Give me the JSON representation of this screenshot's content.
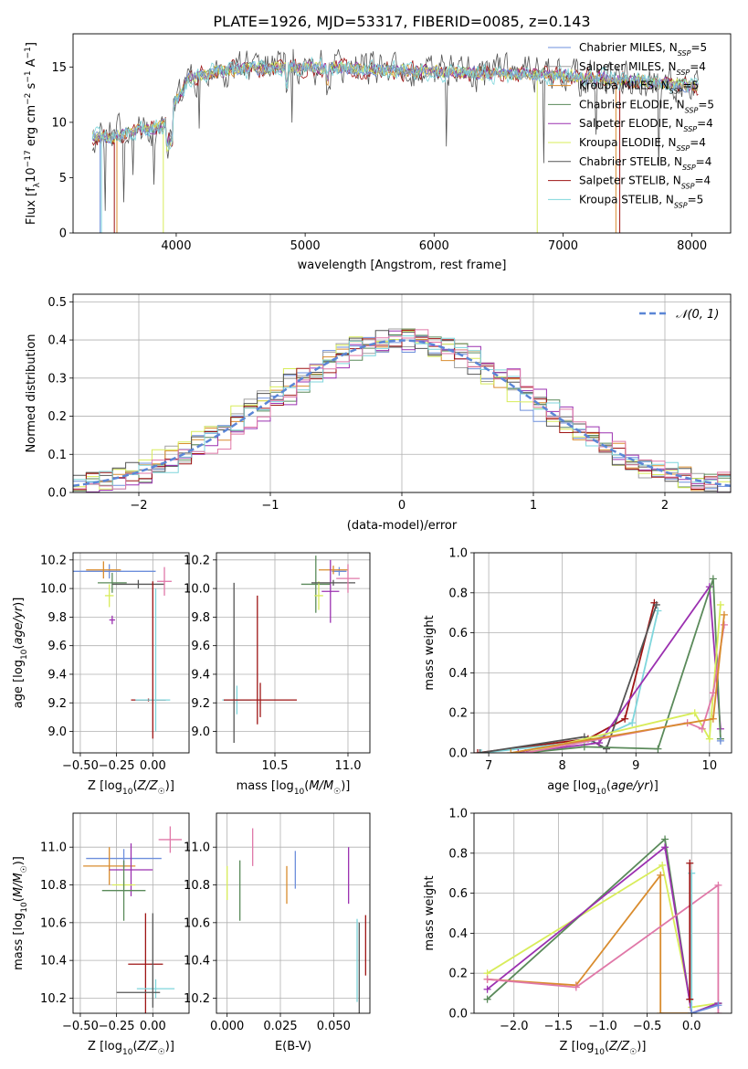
{
  "title": "PLATE=1926, MJD=53317, FIBERID=0085, z=0.143",
  "colors": {
    "Chabrier MILES": "#6d8fdc",
    "Salpeter MILES": "#a0a0a0",
    "Kroupa MILES": "#d98c2e",
    "Chabrier ELODIE": "#5a8a5a",
    "Salpeter ELODIE": "#9b30b0",
    "Kroupa ELODIE": "#d8ec5a",
    "Chabrier STELIB": "#555555",
    "Salpeter STELIB": "#9e1414",
    "Kroupa STELIB": "#7fd6dc",
    "pink": "#e078a8",
    "normal": "#5b86d6"
  },
  "chart_data": [
    {
      "type": "line",
      "xlabel": "wavelength [Angstrom, rest frame]",
      "ylabel": "Flux [f_λ10^-17 erg cm^-2 s^-1 A^-1]",
      "xlim": [
        3200,
        8300
      ],
      "ylim": [
        0,
        18
      ],
      "xticks": [
        "4000",
        "5000",
        "6000",
        "7000",
        "8000"
      ],
      "yticks": [
        "0",
        "5",
        "10",
        "15"
      ],
      "continuum": {
        "x": [
          3350,
          3500,
          3700,
          3900,
          4000,
          4100,
          4300,
          4500,
          5000,
          5500,
          6000,
          6500,
          7000,
          7500,
          8050
        ],
        "y": [
          8.8,
          8.6,
          9.3,
          9.6,
          12.0,
          14.0,
          14.6,
          14.8,
          15.0,
          14.8,
          14.6,
          14.4,
          14.2,
          13.8,
          13.2
        ]
      },
      "legend": [
        {
          "label": "Chabrier MILES",
          "nssp": "5"
        },
        {
          "label": "Salpeter MILES",
          "nssp": "4"
        },
        {
          "label": "Kroupa MILES",
          "nssp": "5"
        },
        {
          "label": "Chabrier ELODIE",
          "nssp": "5"
        },
        {
          "label": "Salpeter ELODIE",
          "nssp": "4"
        },
        {
          "label": "Kroupa ELODIE",
          "nssp": "4"
        },
        {
          "label": "Chabrier STELIB",
          "nssp": "4"
        },
        {
          "label": "Salpeter STELIB",
          "nssp": "4"
        },
        {
          "label": "Kroupa STELIB",
          "nssp": "5"
        }
      ]
    },
    {
      "type": "line",
      "xlabel": "(data-model)/error",
      "ylabel": "Normed distribution",
      "xlim": [
        -2.5,
        2.5
      ],
      "ylim": [
        0,
        0.52
      ],
      "xticks": [
        "−2",
        "−1",
        "0",
        "1",
        "2"
      ],
      "yticks": [
        "0.0",
        "0.1",
        "0.2",
        "0.3",
        "0.4",
        "0.5"
      ],
      "legend": "𝒩(0, 1)",
      "bin_width": 0.1
    },
    {
      "type": "scatter",
      "xlabel": "Z [log10(Z/Z☉)]",
      "ylabel": "age  [log10(age/yr)]",
      "xlim": [
        -0.55,
        0.25
      ],
      "ylim": [
        8.85,
        10.25
      ],
      "xticks": [
        "−0.50",
        "−0.25",
        "0.00"
      ],
      "yticks": [
        "9.0",
        "9.2",
        "9.4",
        "9.6",
        "9.8",
        "10.0",
        "10.2"
      ],
      "points": [
        {
          "c": "Chabrier MILES",
          "x": -0.3,
          "y": 10.12,
          "xe": 0.32,
          "ye": 0.05
        },
        {
          "c": "Kroupa MILES",
          "x": -0.34,
          "y": 10.13,
          "xe": 0.12,
          "ye": 0.06
        },
        {
          "c": "Chabrier ELODIE",
          "x": -0.28,
          "y": 10.04,
          "xe": 0.1,
          "ye": 0.07
        },
        {
          "c": "Salpeter ELODIE",
          "x": -0.28,
          "y": 9.78,
          "xe": 0.02,
          "ye": 0.03
        },
        {
          "c": "Kroupa ELODIE",
          "x": -0.3,
          "y": 9.95,
          "xe": 0.03,
          "ye": 0.08
        },
        {
          "c": "Chabrier STELIB",
          "x": -0.1,
          "y": 10.03,
          "xe": 0.18,
          "ye": 0.03
        },
        {
          "c": "Salpeter STELIB",
          "x": -0.03,
          "y": 9.22,
          "xe": 0.12,
          "ye": 0.01
        },
        {
          "c": "Kroupa STELIB",
          "x": 0.0,
          "y": 9.22,
          "xe": 0.12,
          "ye": 0.01
        },
        {
          "c": "pink",
          "x": 0.08,
          "y": 10.05,
          "xe": 0.05,
          "ye": 0.1
        },
        {
          "c": "Salpeter STELIB",
          "x": 0.0,
          "y": 9.5,
          "xe": 0.0,
          "ye": 0.55
        },
        {
          "c": "Kroupa STELIB",
          "x": 0.02,
          "y": 9.5,
          "xe": 0.0,
          "ye": 0.5
        }
      ]
    },
    {
      "type": "scatter",
      "xlabel": "mass [log10(M/M☉)]",
      "ylabel": "",
      "xlim": [
        10.1,
        11.15
      ],
      "ylim": [
        8.85,
        10.25
      ],
      "xticks": [
        "10.5",
        "11.0"
      ],
      "yticks": [
        "9.0",
        "9.2",
        "9.4",
        "9.6",
        "9.8",
        "10.0",
        "10.2"
      ],
      "points": [
        {
          "c": "Chabrier STELIB",
          "x": 10.22,
          "y": 9.48,
          "xe": 0.0,
          "ye": 0.56
        },
        {
          "c": "Kroupa STELIB",
          "x": 10.24,
          "y": 9.22,
          "xe": 0.1,
          "ye": 0.1
        },
        {
          "c": "Salpeter STELIB",
          "x": 10.4,
          "y": 9.22,
          "xe": 0.25,
          "ye": 0.12
        },
        {
          "c": "Salpeter STELIB",
          "x": 10.38,
          "y": 9.5,
          "xe": 0.0,
          "ye": 0.45
        },
        {
          "c": "Chabrier MILES",
          "x": 10.94,
          "y": 10.12,
          "xe": 0.05,
          "ye": 0.03
        },
        {
          "c": "Kroupa MILES",
          "x": 10.9,
          "y": 10.13,
          "xe": 0.1,
          "ye": 0.03
        },
        {
          "c": "Chabrier ELODIE",
          "x": 10.78,
          "y": 10.03,
          "xe": 0.1,
          "ye": 0.2
        },
        {
          "c": "Salpeter ELODIE",
          "x": 10.88,
          "y": 9.98,
          "xe": 0.06,
          "ye": 0.22
        },
        {
          "c": "Kroupa ELODIE",
          "x": 10.8,
          "y": 9.95,
          "xe": 0.03,
          "ye": 0.1
        },
        {
          "c": "Chabrier STELIB",
          "x": 10.9,
          "y": 10.04,
          "xe": 0.15,
          "ye": 0.02
        },
        {
          "c": "pink",
          "x": 11.0,
          "y": 10.07,
          "xe": 0.08,
          "ye": 0.1
        }
      ]
    },
    {
      "type": "line",
      "xlabel": "age  [log10(age/yr)]",
      "ylabel": "mass weight",
      "xlim": [
        6.8,
        10.3
      ],
      "ylim": [
        0,
        1.0
      ],
      "xticks": [
        "7",
        "8",
        "9",
        "10"
      ],
      "yticks": [
        "0.0",
        "0.2",
        "0.4",
        "0.6",
        "0.8",
        "1.0"
      ],
      "series": [
        {
          "c": "Salpeter STELIB",
          "x": [
            6.85,
            8.35,
            8.85,
            9.25
          ],
          "y": [
            0.0,
            0.07,
            0.17,
            0.75
          ]
        },
        {
          "c": "Kroupa STELIB",
          "x": [
            6.9,
            8.4,
            8.95,
            9.3
          ],
          "y": [
            0.0,
            0.06,
            0.15,
            0.71
          ]
        },
        {
          "c": "Chabrier STELIB",
          "x": [
            6.88,
            8.3,
            8.6,
            9.28
          ],
          "y": [
            0.0,
            0.08,
            0.02,
            0.74
          ]
        },
        {
          "c": "Salpeter ELODIE",
          "x": [
            7.4,
            8.5,
            10.0,
            10.15
          ],
          "y": [
            0.0,
            0.05,
            0.83,
            0.12
          ]
        },
        {
          "c": "Chabrier ELODIE",
          "x": [
            7.5,
            8.3,
            9.3,
            10.05,
            10.15
          ],
          "y": [
            0.0,
            0.03,
            0.02,
            0.87,
            0.07
          ]
        },
        {
          "c": "Kroupa ELODIE",
          "x": [
            7.5,
            9.8,
            10.0,
            10.15
          ],
          "y": [
            0.0,
            0.2,
            0.07,
            0.74
          ]
        },
        {
          "c": "pink",
          "x": [
            7.5,
            9.7,
            9.9,
            10.05,
            10.2
          ],
          "y": [
            0.0,
            0.15,
            0.12,
            0.3,
            0.64
          ]
        },
        {
          "c": "Kroupa MILES",
          "x": [
            7.3,
            10.05,
            10.2
          ],
          "y": [
            0.0,
            0.17,
            0.69
          ]
        },
        {
          "c": "Chabrier MILES",
          "x": [
            10.15
          ],
          "y": [
            0.06
          ]
        }
      ]
    },
    {
      "type": "scatter",
      "xlabel": "Z [log10(Z/Z☉)]",
      "ylabel": "mass [log10(M/M☉)]",
      "xlim": [
        -0.55,
        0.25
      ],
      "ylim": [
        10.12,
        11.18
      ],
      "xticks": [
        "−0.50",
        "−0.25",
        "0.00"
      ],
      "yticks": [
        "10.2",
        "10.4",
        "10.6",
        "10.8",
        "11.0"
      ],
      "points": [
        {
          "c": "Chabrier MILES",
          "x": -0.2,
          "y": 10.94,
          "xe": 0.26,
          "ye": 0.05
        },
        {
          "c": "Kroupa MILES",
          "x": -0.3,
          "y": 10.9,
          "xe": 0.18,
          "ye": 0.1
        },
        {
          "c": "Salpeter ELODIE",
          "x": -0.15,
          "y": 10.88,
          "xe": 0.15,
          "ye": 0.14
        },
        {
          "c": "Kroupa ELODIE",
          "x": -0.2,
          "y": 10.8,
          "xe": 0.08,
          "ye": 0.02
        },
        {
          "c": "Chabrier ELODIE",
          "x": -0.2,
          "y": 10.77,
          "xe": 0.15,
          "ye": 0.16
        },
        {
          "c": "Salpeter STELIB",
          "x": -0.05,
          "y": 10.38,
          "xe": 0.12,
          "ye": 0.27
        },
        {
          "c": "Kroupa STELIB",
          "x": 0.02,
          "y": 10.25,
          "xe": 0.13,
          "ye": 0.05
        },
        {
          "c": "Chabrier STELIB",
          "x": -0.1,
          "y": 10.23,
          "xe": 0.15,
          "ye": 0.0
        },
        {
          "c": "pink",
          "x": 0.12,
          "y": 11.04,
          "xe": 0.08,
          "ye": 0.07
        },
        {
          "c": "Chabrier STELIB",
          "x": 0.0,
          "y": 10.4,
          "xe": 0.0,
          "ye": 0.25
        }
      ]
    },
    {
      "type": "scatter",
      "xlabel": "E(B-V)",
      "ylabel": "",
      "xlim": [
        -0.005,
        0.067
      ],
      "ylim": [
        10.12,
        11.18
      ],
      "xticks": [
        "0.000",
        "0.025",
        "0.050"
      ],
      "yticks": [
        "10.2",
        "10.4",
        "10.6",
        "10.8",
        "11.0"
      ],
      "points": [
        {
          "c": "Kroupa ELODIE",
          "x": 0.0,
          "y": 10.81,
          "xe": 0.0,
          "ye": 0.09
        },
        {
          "c": "Chabrier ELODIE",
          "x": 0.006,
          "y": 10.77,
          "xe": 0.0,
          "ye": 0.16
        },
        {
          "c": "pink",
          "x": 0.012,
          "y": 11.0,
          "xe": 0.0,
          "ye": 0.1
        },
        {
          "c": "Kroupa MILES",
          "x": 0.028,
          "y": 10.8,
          "xe": 0.0,
          "ye": 0.1
        },
        {
          "c": "Chabrier MILES",
          "x": 0.032,
          "y": 10.88,
          "xe": 0.0,
          "ye": 0.1
        },
        {
          "c": "Salpeter ELODIE",
          "x": 0.057,
          "y": 10.85,
          "xe": 0.0,
          "ye": 0.15
        },
        {
          "c": "Kroupa STELIB",
          "x": 0.061,
          "y": 10.4,
          "xe": 0.0,
          "ye": 0.22
        },
        {
          "c": "Chabrier STELIB",
          "x": 0.062,
          "y": 10.35,
          "xe": 0.0,
          "ye": 0.25
        },
        {
          "c": "Salpeter STELIB",
          "x": 0.065,
          "y": 10.48,
          "xe": 0.0,
          "ye": 0.16
        }
      ]
    },
    {
      "type": "line",
      "xlabel": "Z [log10(Z/Z☉)]",
      "ylabel": "mass weight",
      "xlim": [
        -2.45,
        0.45
      ],
      "ylim": [
        0,
        1.0
      ],
      "xticks": [
        "−2.0",
        "−1.5",
        "−1.0",
        "−0.5",
        "0.0"
      ],
      "yticks": [
        "0.0",
        "0.2",
        "0.4",
        "0.6",
        "0.8",
        "1.0"
      ],
      "series": [
        {
          "c": "Kroupa ELODIE",
          "x": [
            -2.3,
            -0.33,
            0.0,
            0.3
          ],
          "y": [
            0.2,
            0.74,
            0.03,
            0.05
          ]
        },
        {
          "c": "Chabrier ELODIE",
          "x": [
            -2.3,
            -0.3,
            0.0,
            0.3
          ],
          "y": [
            0.07,
            0.87,
            0.0,
            0.05
          ]
        },
        {
          "c": "Salpeter ELODIE",
          "x": [
            -2.3,
            -0.3,
            0.0,
            0.3
          ],
          "y": [
            0.12,
            0.83,
            0.0,
            0.05
          ]
        },
        {
          "c": "Kroupa MILES",
          "x": [
            -2.3,
            -1.3,
            -0.35,
            -0.35,
            0.0
          ],
          "y": [
            0.17,
            0.14,
            0.69,
            0.0,
            0.0
          ]
        },
        {
          "c": "pink",
          "x": [
            -2.3,
            -1.3,
            0.3,
            0.3
          ],
          "y": [
            0.17,
            0.13,
            0.64,
            0.0
          ]
        },
        {
          "c": "Kroupa STELIB",
          "x": [
            0.0,
            0.0
          ],
          "y": [
            0.0,
            0.7
          ]
        },
        {
          "c": "Salpeter STELIB",
          "x": [
            -0.02,
            -0.02
          ],
          "y": [
            0.07,
            0.75
          ]
        },
        {
          "c": "Chabrier MILES",
          "x": [
            0.0,
            0.3
          ],
          "y": [
            0.0,
            0.04
          ]
        }
      ]
    }
  ]
}
